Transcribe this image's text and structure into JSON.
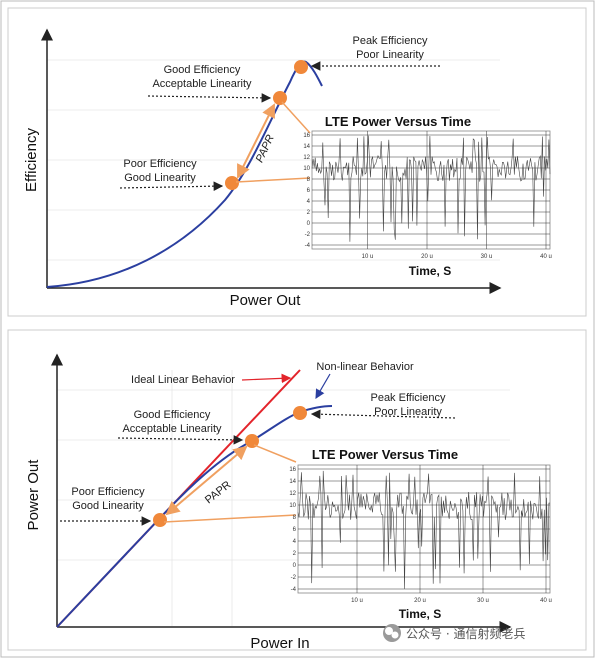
{
  "panel1": {
    "y_axis_label": "Efficiency",
    "x_axis_label": "Power Out",
    "peak_line1": "Peak Efficiency",
    "peak_line2": "Poor Linearity",
    "good_line1": "Good Efficiency",
    "good_line2": "Acceptable Linearity",
    "poor_line1": "Poor Efficiency",
    "poor_line2": "Good Linearity",
    "papr_label": "PAPR",
    "inset_title": "LTE Power Versus Time",
    "inset_xlabel": "Time, S",
    "inset_yticks": [
      "16",
      "14",
      "12",
      "10",
      "8",
      "6",
      "4",
      "2",
      "0",
      "-2",
      "-4"
    ],
    "inset_xticks": [
      "10 u",
      "20 u",
      "30 u",
      "40 u"
    ]
  },
  "panel2": {
    "y_axis_label": "Power Out",
    "x_axis_label": "Power In",
    "ideal_label": "Ideal Linear Behavior",
    "nonlinear_label": "Non-linear Behavior",
    "peak_line1": "Peak Efficiency",
    "peak_line2": "Poor Linearity",
    "good_line1": "Good Efficiency",
    "good_line2": "Acceptable Linearity",
    "poor_line1": "Poor Efficiency",
    "poor_line2": "Good Linearity",
    "papr_label": "PAPR",
    "inset_title": "LTE Power Versus Time",
    "inset_xlabel": "Time, S",
    "inset_yticks": [
      "16",
      "14",
      "12",
      "10",
      "8",
      "6",
      "4",
      "2",
      "0",
      "-2",
      "-4"
    ],
    "inset_xticks": [
      "10 u",
      "20 u",
      "30 u",
      "40 u"
    ]
  },
  "colors": {
    "curve": "#2b3fa0",
    "ideal_line": "#e3242b",
    "marker": "#f0883a",
    "arrow": "#f0a060",
    "nonlinear_text": "#2b3fa0",
    "ideal_text": "#e3242b"
  },
  "watermark": "公众号 · 通信射频老兵",
  "watermark_icon": "wechat-icon"
}
